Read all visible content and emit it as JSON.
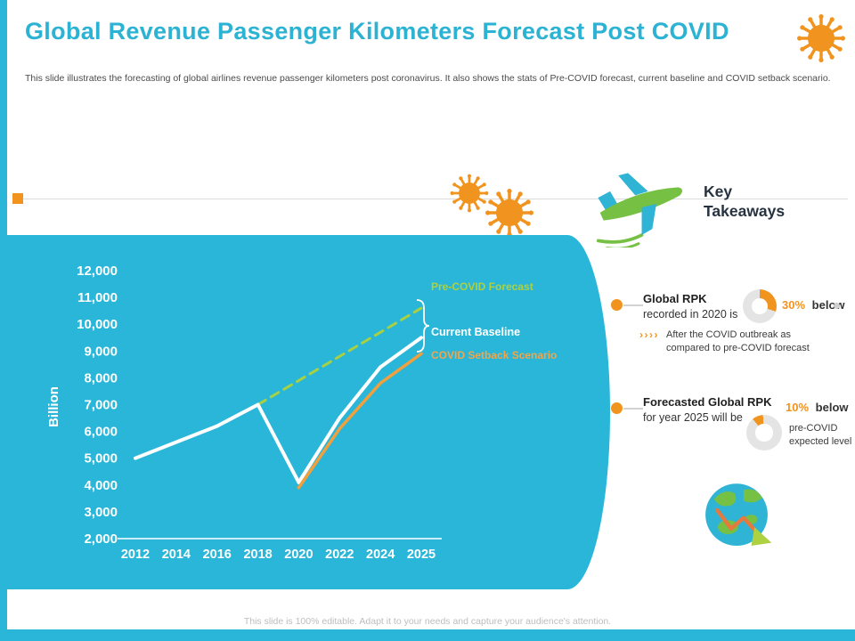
{
  "slide": {
    "title": "Global Revenue Passenger Kilometers Forecast Post COVID",
    "subtitle": "This slide illustrates the forecasting of global airlines revenue passenger kilometers post coronavirus. It also shows the stats of Pre-COVID forecast, current baseline and COVID setback scenario.",
    "footer": "This slide is 100% editable. Adapt it to your needs and capture your audience's attention."
  },
  "colors": {
    "cyan": "#29b6d8",
    "orange": "#f0941f",
    "lime": "#aed141",
    "dark": "#273240",
    "white": "#ffffff",
    "footer_gray": "#bdbdbd"
  },
  "chart_data": {
    "type": "line",
    "title": "",
    "xlabel": "",
    "ylabel": "Billion",
    "ylim": [
      2000,
      12000
    ],
    "grid": false,
    "legend_position": "right-of-line-ends",
    "categories": [
      "2012",
      "2014",
      "2016",
      "2018",
      "2020",
      "2022",
      "2024",
      "2025"
    ],
    "yticks": [
      {
        "value": 12000,
        "label": "12,000"
      },
      {
        "value": 11000,
        "label": "11,000"
      },
      {
        "value": 10000,
        "label": "10,000"
      },
      {
        "value": 9000,
        "label": "9,000"
      },
      {
        "value": 8000,
        "label": "8,000"
      },
      {
        "value": 7000,
        "label": "7,000"
      },
      {
        "value": 6000,
        "label": "6,000"
      },
      {
        "value": 5000,
        "label": "5,000"
      },
      {
        "value": 4000,
        "label": "4,000"
      },
      {
        "value": 3000,
        "label": "3,000"
      },
      {
        "value": 2000,
        "label": "2,000"
      }
    ],
    "series": [
      {
        "id": "pre-covid-forecast",
        "name": "Pre-COVID Forecast",
        "color": "#a8d043",
        "dashed": true,
        "width": 3,
        "points": [
          [
            2018,
            7000
          ],
          [
            2025,
            10600
          ]
        ]
      },
      {
        "id": "current-baseline",
        "name": "Current Baseline",
        "color": "#ffffff",
        "dashed": false,
        "width": 4,
        "points": [
          [
            2012,
            5000
          ],
          [
            2014,
            5600
          ],
          [
            2016,
            6200
          ],
          [
            2018,
            7000
          ],
          [
            2020,
            4100
          ],
          [
            2022,
            6500
          ],
          [
            2024,
            8400
          ],
          [
            2025,
            9500
          ]
        ]
      },
      {
        "id": "covid-setback-scenario",
        "name": "COVID Setback Scenario",
        "color": "#f0a03c",
        "dashed": false,
        "width": 3.5,
        "points": [
          [
            2020,
            3900
          ],
          [
            2022,
            6100
          ],
          [
            2024,
            7800
          ],
          [
            2025,
            8900
          ]
        ]
      }
    ]
  },
  "key_takeaways": {
    "heading": "Key Takeaways",
    "items": [
      {
        "title_line1": "Global RPK",
        "title_line2": "recorded in 2020 is",
        "pct": 30,
        "pct_label": "30%",
        "pct_suffix": "below",
        "chevrons": "››››",
        "note": "After the COVID outbreak as compared to pre-COVID forecast"
      },
      {
        "title_line1": "Forecasted Global RPK",
        "title_line2": "for year 2025 will be",
        "pct": 10,
        "pct_label": "10%",
        "pct_suffix": "below",
        "note": "pre-COVID expected level"
      }
    ]
  }
}
